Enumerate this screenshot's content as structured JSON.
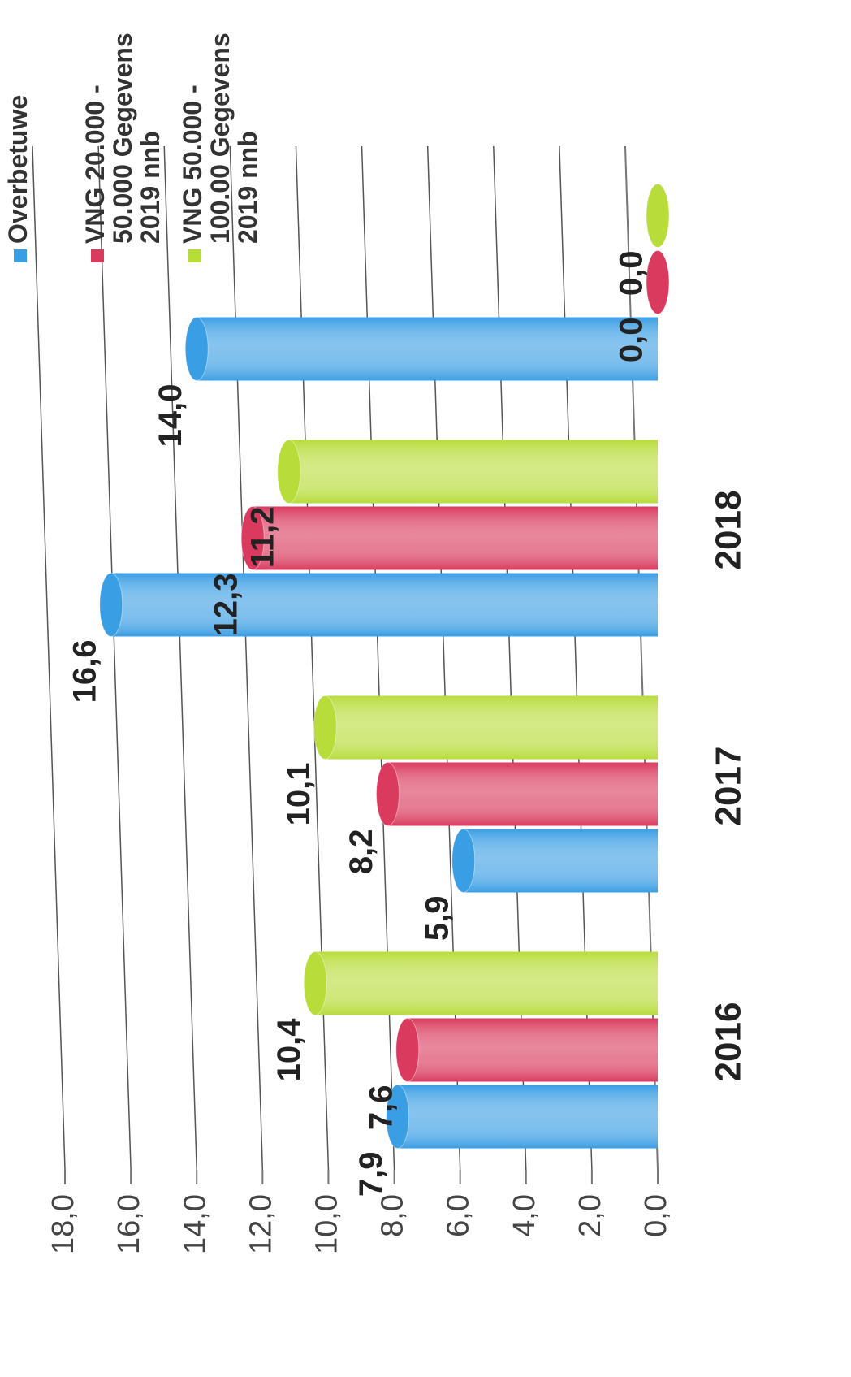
{
  "chart_data": {
    "type": "bar",
    "categories": [
      "2016",
      "2017",
      "2018",
      null
    ],
    "series": [
      {
        "name": "Overbetuwe",
        "color": "#3a9ee4",
        "values": [
          7.9,
          5.9,
          16.6,
          14.0
        ],
        "value_labels": [
          "7,9",
          "5,9",
          "16,6",
          "14,0"
        ]
      },
      {
        "name": "VNG 20.000 - 50.000 Gegevens 2019 nnb",
        "color": "#d93a5e",
        "values": [
          7.6,
          8.2,
          12.3,
          0.0
        ],
        "value_labels": [
          "7,6",
          "8,2",
          "12,3",
          "0,0"
        ]
      },
      {
        "name": "VNG 50.000 - 100.00 Gegevens 2019 nnb",
        "color": "#b8dc3a",
        "values": [
          10.4,
          10.1,
          11.2,
          0.0
        ],
        "value_labels": [
          "10,4",
          "10,1",
          "11,2",
          "0,0"
        ]
      }
    ],
    "ylim": [
      0,
      18
    ],
    "yticks": [
      {
        "value": 0,
        "label": "0,0"
      },
      {
        "value": 2,
        "label": "2,0"
      },
      {
        "value": 4,
        "label": "4,0"
      },
      {
        "value": 6,
        "label": "6,0"
      },
      {
        "value": 8,
        "label": "8,0"
      },
      {
        "value": 10,
        "label": "10,0"
      },
      {
        "value": 12,
        "label": "12,0"
      },
      {
        "value": 14,
        "label": "14,0"
      },
      {
        "value": 16,
        "label": "16,0"
      },
      {
        "value": 18,
        "label": "18,0"
      }
    ],
    "grid": true,
    "legend": "top-right"
  }
}
